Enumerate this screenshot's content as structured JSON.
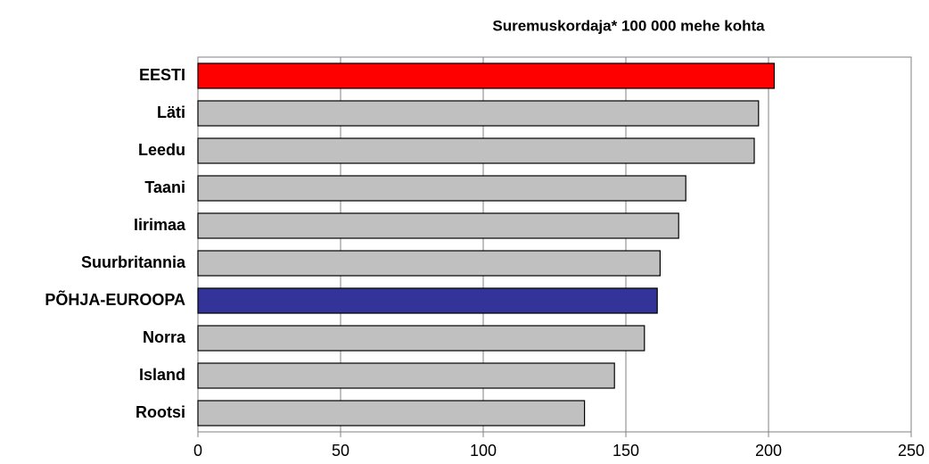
{
  "chart_data": {
    "type": "bar",
    "orientation": "horizontal",
    "title": "Suremuskordaja* 100 000 mehe kohta",
    "categories": [
      "EESTI",
      "Läti",
      "Leedu",
      "Taani",
      "Iirimaa",
      "Suurbritannia",
      "PÕHJA-EUROOPA",
      "Norra",
      "Island",
      "Rootsi"
    ],
    "values": [
      202,
      196.5,
      195,
      171,
      168.5,
      162,
      161,
      156.5,
      146,
      135.5
    ],
    "colors": [
      "#ff0000",
      "#c0c0c0",
      "#c0c0c0",
      "#c0c0c0",
      "#c0c0c0",
      "#c0c0c0",
      "#333399",
      "#c0c0c0",
      "#c0c0c0",
      "#c0c0c0"
    ],
    "xlim": [
      0,
      250
    ],
    "xticks": [
      0,
      50,
      100,
      150,
      200,
      250
    ],
    "grid": true
  }
}
